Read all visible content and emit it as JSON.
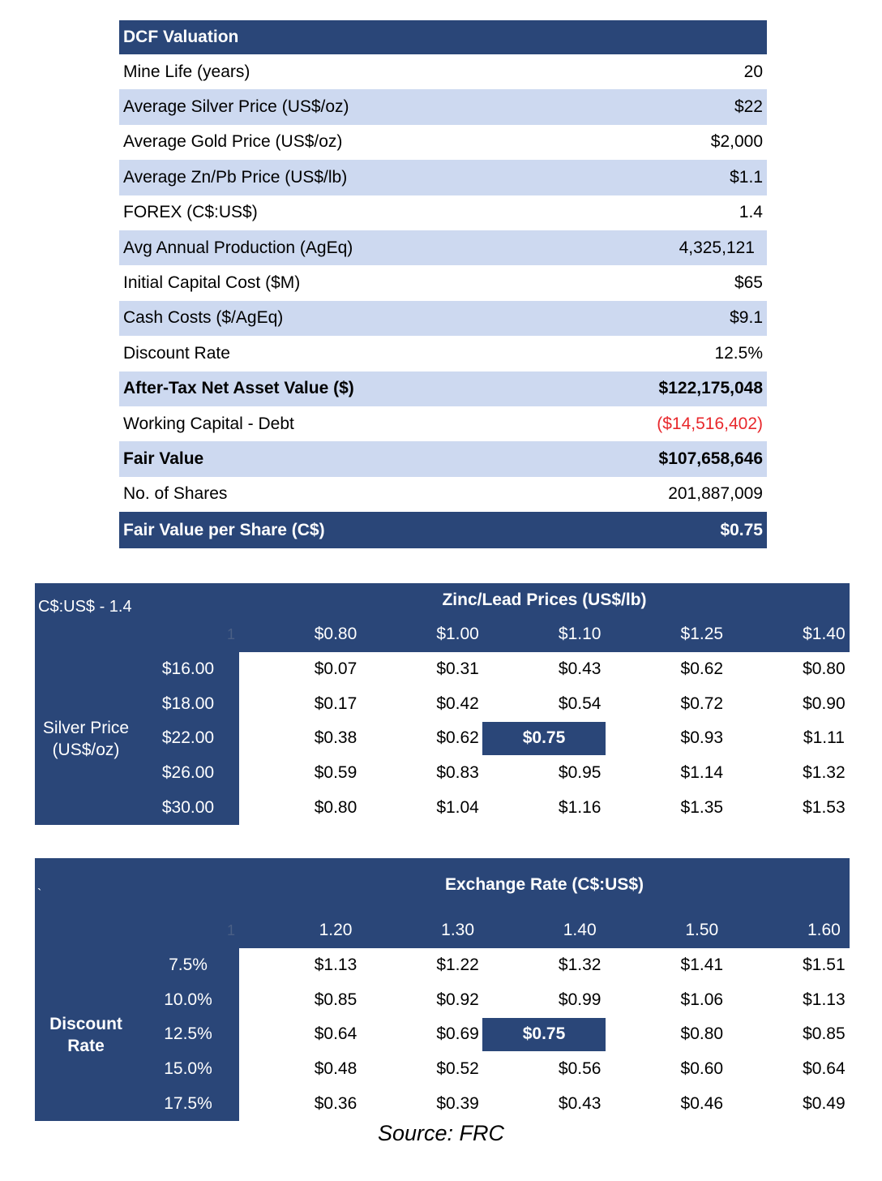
{
  "dcf": {
    "title": "DCF Valuation",
    "rows": [
      {
        "label": "Mine Life (years)",
        "value": "20"
      },
      {
        "label": "Average Silver Price (US$/oz)",
        "value": "$22"
      },
      {
        "label": "Average Gold Price (US$/oz)",
        "value": "$2,000"
      },
      {
        "label": "Average Zn/Pb Price (US$/lb)",
        "value": "$1.1"
      },
      {
        "label": "FOREX (C$:US$)",
        "value": "1.4"
      },
      {
        "label": "Avg Annual Production (AgEq)",
        "value": "4,325,121"
      },
      {
        "label": "Initial Capital Cost ($M)",
        "value": "$65"
      },
      {
        "label": "Cash Costs ($/AgEq)",
        "value": "$9.1"
      },
      {
        "label": "Discount Rate",
        "value": "12.5%"
      },
      {
        "label": "After-Tax Net Asset Value ($)",
        "value": "$122,175,048"
      },
      {
        "label": "Working Capital - Debt",
        "value": "($14,516,402)"
      },
      {
        "label": "Fair Value",
        "value": "$107,658,646"
      },
      {
        "label": "No. of Shares",
        "value": "201,887,009"
      }
    ],
    "footer": {
      "label": "Fair Value per Share (C$)",
      "value": "$0.75"
    }
  },
  "zinc_table": {
    "corner": "C$:US$ - 1.4",
    "header": "Zinc/Lead Prices (US$/lb)",
    "corner_mark": "1",
    "columns": [
      "$0.80",
      "$1.00",
      "$1.10",
      "$1.25",
      "$1.40"
    ],
    "row_label": "Silver Price\n(US$/oz)",
    "rows": [
      {
        "label": "$16.00",
        "values": [
          "$0.07",
          "$0.31",
          "$0.43",
          "$0.62",
          "$0.80"
        ]
      },
      {
        "label": "$18.00",
        "values": [
          "$0.17",
          "$0.42",
          "$0.54",
          "$0.72",
          "$0.90"
        ]
      },
      {
        "label": "$22.00",
        "values": [
          "$0.38",
          "$0.62",
          "$0.75",
          "$0.93",
          "$1.11"
        ]
      },
      {
        "label": "$26.00",
        "values": [
          "$0.59",
          "$0.83",
          "$0.95",
          "$1.14",
          "$1.32"
        ]
      },
      {
        "label": "$30.00",
        "values": [
          "$0.80",
          "$1.04",
          "$1.16",
          "$1.35",
          "$1.53"
        ]
      }
    ]
  },
  "fx_table": {
    "corner": "`",
    "header": "Exchange Rate (C$:US$)",
    "corner_mark": "1",
    "columns": [
      "1.20",
      "1.30",
      "1.40",
      "1.50",
      "1.60"
    ],
    "row_label": "Discount\nRate",
    "rows": [
      {
        "label": "7.5%",
        "values": [
          "$1.13",
          "$1.22",
          "$1.32",
          "$1.41",
          "$1.51"
        ]
      },
      {
        "label": "10.0%",
        "values": [
          "$0.85",
          "$0.92",
          "$0.99",
          "$1.06",
          "$1.13"
        ]
      },
      {
        "label": "12.5%",
        "values": [
          "$0.64",
          "$0.69",
          "$0.75",
          "$0.80",
          "$0.85"
        ]
      },
      {
        "label": "15.0%",
        "values": [
          "$0.48",
          "$0.52",
          "$0.56",
          "$0.60",
          "$0.64"
        ]
      },
      {
        "label": "17.5%",
        "values": [
          "$0.36",
          "$0.39",
          "$0.43",
          "$0.46",
          "$0.49"
        ]
      }
    ]
  },
  "source": "Source: FRC",
  "colors": {
    "navy": "#2a4678",
    "light_band": "#cdd9f0",
    "negative": "#e8282c"
  }
}
